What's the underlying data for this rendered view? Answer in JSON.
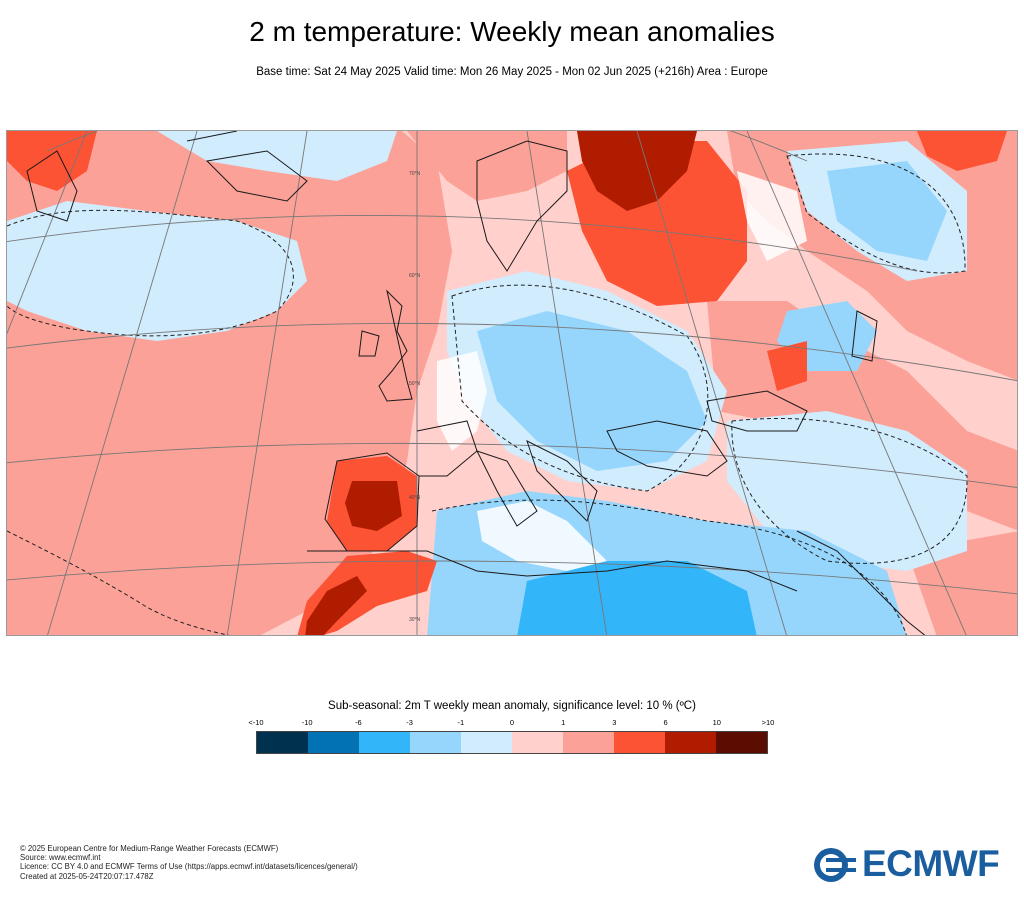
{
  "header": {
    "title": "2 m temperature: Weekly mean anomalies",
    "subtitle": "Base time: Sat 24 May 2025 Valid time: Mon 26 May 2025 - Mon 02 Jun 2025 (+216h) Area : Europe"
  },
  "map": {
    "area": "Europe",
    "projection": "polar-stereographic",
    "graticule_labels": [
      "70°N",
      "60°N",
      "50°N",
      "40°N",
      "30°N"
    ],
    "colors_by_class": {
      "lt_-10": "#00324f",
      "-10_-6": "#0272b4",
      "-6_-3": "#33b5fa",
      "-3_-1": "#97d6fc",
      "-1_0": "#d0ecfd",
      "0_1": "#ffd0cc",
      "1_3": "#fca197",
      "3_6": "#fd5335",
      "6_10": "#b01c00",
      "gt_10": "#5a0d00"
    },
    "significance_contour": "dashed"
  },
  "legend": {
    "title": "Sub-seasonal: 2m T weekly mean anomaly, significance level: 10 % (ºC)",
    "ticks": [
      "<-10",
      "-10",
      "-6",
      "-3",
      "-1",
      "0",
      "1",
      "3",
      "6",
      "10",
      ">10"
    ],
    "colors": [
      "#00324f",
      "#0272b4",
      "#33b5fa",
      "#97d6fc",
      "#d0ecfd",
      "#ffd0cc",
      "#fca197",
      "#fd5335",
      "#b01c00",
      "#5a0d00"
    ]
  },
  "footer": {
    "line1": "© 2025 European Centre for Medium-Range Weather Forecasts (ECMWF)",
    "line2": "Source: www.ecmwf.int",
    "line3": "Licence: CC BY 4.0 and ECMWF Terms of Use (https://apps.ecmwf.int/datasets/licences/general/)",
    "line4": "Created at 2025-05-24T20:07:17.478Z"
  },
  "logo": {
    "text": "ECMWF",
    "color": "#1a5ea0"
  }
}
